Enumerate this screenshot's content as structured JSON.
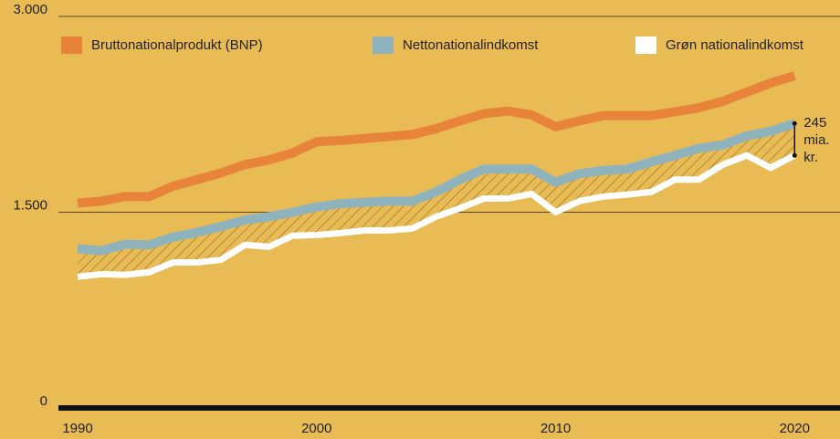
{
  "chart_data": {
    "type": "line",
    "x": [
      1990,
      1991,
      1992,
      1993,
      1994,
      1995,
      1996,
      1997,
      1998,
      1999,
      2000,
      2001,
      2002,
      2003,
      2004,
      2005,
      2006,
      2007,
      2008,
      2009,
      2010,
      2011,
      2012,
      2013,
      2014,
      2015,
      2016,
      2017,
      2018,
      2019,
      2020
    ],
    "series": [
      {
        "name": "Bruttonationalprodukt (BNP)",
        "color": "#e8843a",
        "values": [
          1570,
          1585,
          1620,
          1620,
          1700,
          1750,
          1800,
          1865,
          1900,
          1955,
          2040,
          2050,
          2065,
          2080,
          2095,
          2140,
          2200,
          2255,
          2275,
          2245,
          2155,
          2200,
          2240,
          2240,
          2240,
          2270,
          2300,
          2350,
          2420,
          2490,
          2545
        ]
      },
      {
        "name": "Nettonationalindkomst",
        "color": "#8fb3bd",
        "values": [
          1220,
          1205,
          1255,
          1250,
          1310,
          1345,
          1390,
          1440,
          1465,
          1500,
          1540,
          1565,
          1575,
          1585,
          1585,
          1655,
          1750,
          1830,
          1830,
          1830,
          1730,
          1795,
          1820,
          1830,
          1885,
          1935,
          1990,
          2015,
          2085,
          2120,
          2180
        ]
      },
      {
        "name": "Grøn nationalindkomst",
        "color": "#ffffff",
        "values": [
          1005,
          1025,
          1020,
          1040,
          1115,
          1115,
          1135,
          1250,
          1235,
          1320,
          1325,
          1340,
          1360,
          1360,
          1375,
          1465,
          1530,
          1605,
          1605,
          1640,
          1500,
          1585,
          1620,
          1635,
          1655,
          1750,
          1750,
          1865,
          1935,
          1840,
          1935
        ]
      }
    ],
    "annotation": [
      "245",
      "mia.",
      "kr."
    ],
    "xlim": [
      1989.35,
      2021.9
    ],
    "xticks": [
      1990,
      2000,
      2010,
      2020
    ],
    "ylim": [
      0,
      3000
    ],
    "yticks": [
      0,
      {
        "value": 1500,
        "label": "1.500"
      },
      {
        "value": 3000,
        "label": "3.000"
      }
    ],
    "grid": true
  }
}
